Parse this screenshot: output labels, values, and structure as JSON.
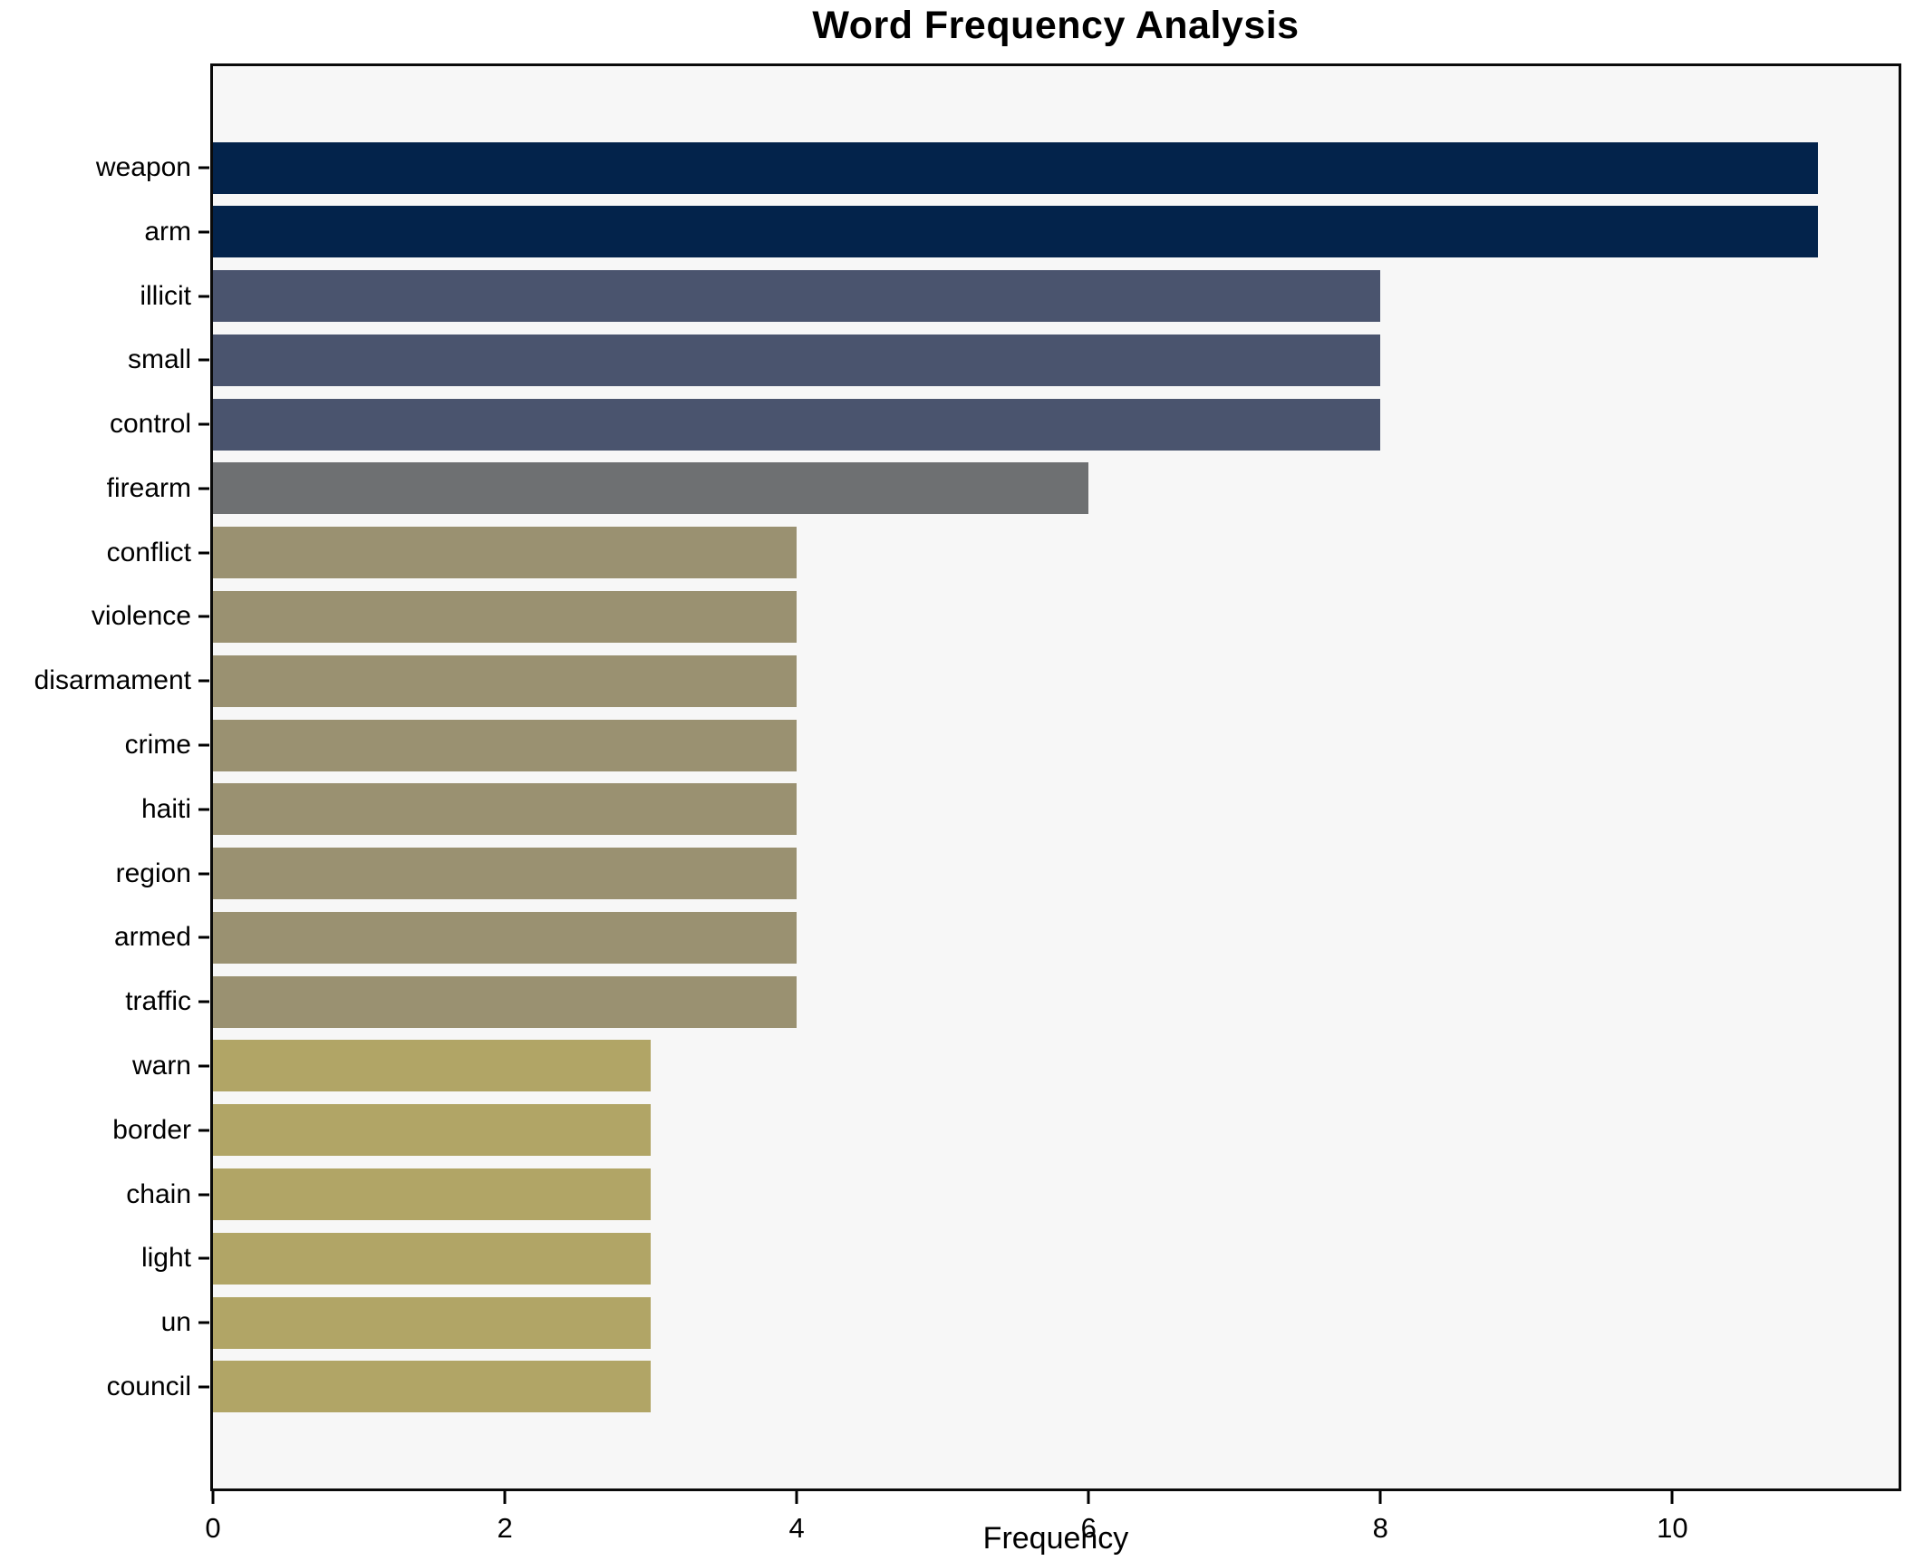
{
  "chart_data": {
    "type": "bar",
    "orientation": "horizontal",
    "title": "Word Frequency Analysis",
    "xlabel": "Frequency",
    "ylabel": "",
    "xlim": [
      0,
      11.55
    ],
    "xticks": [
      0,
      2,
      4,
      6,
      8,
      10
    ],
    "grid": false,
    "legend": false,
    "categories": [
      "weapon",
      "arm",
      "illicit",
      "small",
      "control",
      "firearm",
      "conflict",
      "violence",
      "disarmament",
      "crime",
      "haiti",
      "region",
      "armed",
      "traffic",
      "warn",
      "border",
      "chain",
      "light",
      "un",
      "council"
    ],
    "values": [
      11,
      11,
      8,
      8,
      8,
      6,
      4,
      4,
      4,
      4,
      4,
      4,
      4,
      4,
      3,
      3,
      3,
      3,
      3,
      3
    ],
    "bar_colors": [
      "#03234b",
      "#03234b",
      "#4a546e",
      "#4a546e",
      "#4a546e",
      "#6e7072",
      "#9a9171",
      "#9a9171",
      "#9a9171",
      "#9a9171",
      "#9a9171",
      "#9a9171",
      "#9a9171",
      "#9a9171",
      "#b1a566",
      "#b1a566",
      "#b1a566",
      "#b1a566",
      "#b1a566",
      "#b1a566"
    ]
  },
  "colors": {
    "figure_bg": "#ffffff",
    "plot_bg": "#f7f7f7",
    "axis": "#0a0a0a",
    "text": "#000000"
  }
}
